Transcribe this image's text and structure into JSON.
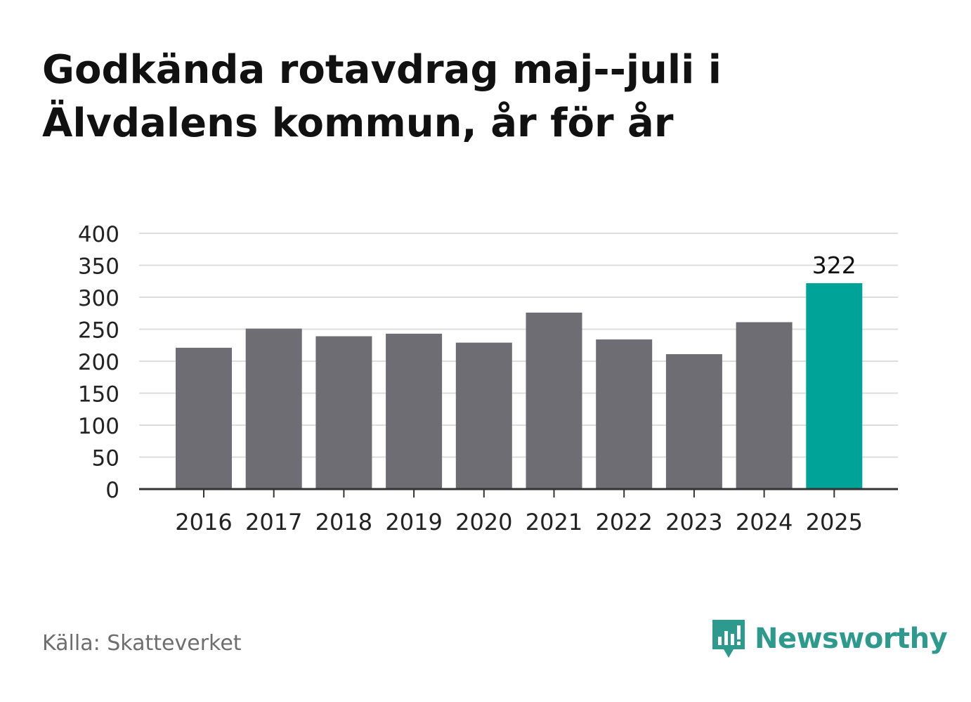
{
  "title": {
    "line1": "Godkända rotavdrag maj--juli i",
    "line2": "Älvdalens kommun, år för år"
  },
  "source": "Källa: Skatteverket",
  "brand": {
    "name": "Newsworthy",
    "icon": "newsworthy-logo-icon",
    "color": "#2e9a8e"
  },
  "colors": {
    "bar": "#6e6d74",
    "highlight": "#00a398",
    "grid": "#dddddd",
    "axis": "#333333"
  },
  "chart_data": {
    "type": "bar",
    "categories": [
      "2016",
      "2017",
      "2018",
      "2019",
      "2020",
      "2021",
      "2022",
      "2023",
      "2024",
      "2025"
    ],
    "values": [
      221,
      251,
      239,
      243,
      229,
      276,
      234,
      211,
      261,
      322
    ],
    "highlight_index": 9,
    "data_labels": [
      "",
      "",
      "",
      "",
      "",
      "",
      "",
      "",
      "",
      "322"
    ],
    "ylim": [
      0,
      400
    ],
    "yticks": [
      0,
      50,
      100,
      150,
      200,
      250,
      300,
      350,
      400
    ],
    "grid": true,
    "xlabel": "",
    "ylabel": ""
  }
}
